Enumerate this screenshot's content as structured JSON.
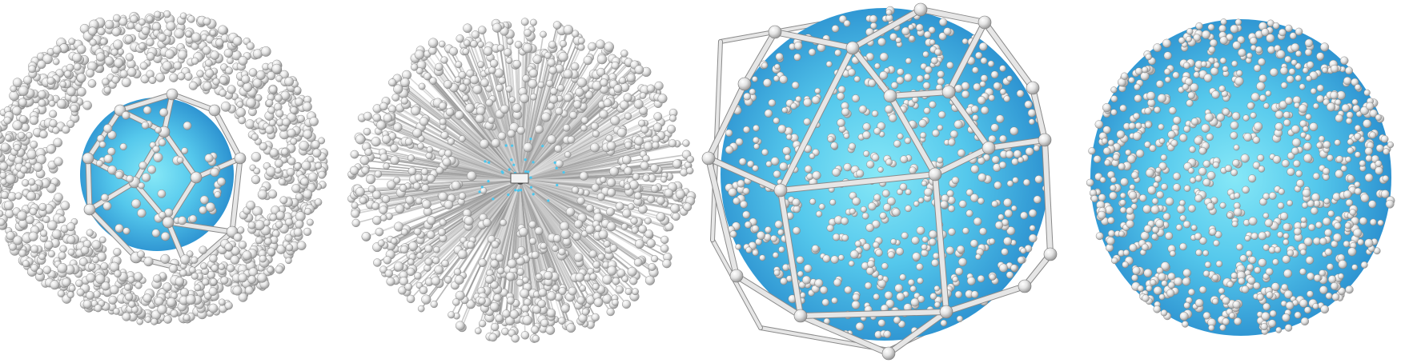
{
  "colors": {
    "background": "#ffffff",
    "sphere_light": "#7fe3f5",
    "sphere_mid": "#4cc4ea",
    "sphere_dark": "#2a8fcf",
    "sphere_edge": "#1f78bb",
    "frame": "#cfcfcf",
    "frame_dark": "#8a8a8a",
    "particle_light": "#ffffff",
    "particle_mid": "#d9d9d9",
    "particle_dark": "#8e8e8e",
    "spike": "#b9b9b9",
    "spike_core": "#3a3a3a"
  },
  "panels": [
    {
      "id": "panel-1",
      "style": "small-sphere-particle-cloud"
    },
    {
      "id": "panel-2",
      "style": "radial-spike-burst"
    },
    {
      "id": "panel-3",
      "style": "sphere-in-polyhedral-cage"
    },
    {
      "id": "panel-4",
      "style": "sphere-covered-by-particles"
    }
  ]
}
